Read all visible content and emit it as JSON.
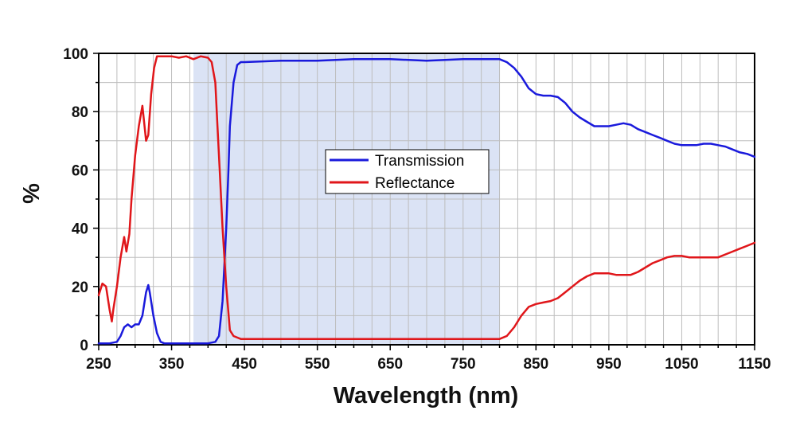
{
  "chart_data": {
    "type": "line",
    "xlabel": "Wavelength (nm)",
    "ylabel": "%",
    "xlim": [
      250,
      1150
    ],
    "ylim": [
      0,
      100
    ],
    "x_ticks": [
      "250",
      "350",
      "450",
      "550",
      "650",
      "750",
      "850",
      "950",
      "1050",
      "1150"
    ],
    "y_ticks": [
      "0",
      "20",
      "40",
      "60",
      "80",
      "100"
    ],
    "grid": true,
    "legend_position": "center",
    "shaded_band": {
      "x_start": 380,
      "x_end": 800,
      "color": "#dbe3f5"
    },
    "series": [
      {
        "name": "Transmission",
        "color": "#1a1adc",
        "x": [
          250,
          265,
          275,
          280,
          285,
          290,
          295,
          300,
          305,
          310,
          315,
          318,
          320,
          325,
          330,
          335,
          340,
          350,
          400,
          410,
          415,
          420,
          425,
          428,
          430,
          435,
          440,
          445,
          450,
          500,
          550,
          600,
          650,
          700,
          750,
          800,
          810,
          820,
          830,
          840,
          850,
          860,
          870,
          880,
          890,
          900,
          910,
          920,
          930,
          940,
          950,
          960,
          970,
          980,
          990,
          1000,
          1010,
          1020,
          1030,
          1040,
          1050,
          1060,
          1070,
          1080,
          1090,
          1100,
          1110,
          1120,
          1130,
          1140,
          1150
        ],
        "y": [
          0.5,
          0.5,
          1,
          3,
          6,
          7,
          6,
          7,
          7,
          10,
          18,
          20.5,
          18,
          10,
          4,
          1,
          0.5,
          0.5,
          0.5,
          1,
          3,
          15,
          40,
          60,
          75,
          90,
          96,
          97,
          97,
          97.5,
          97.5,
          98,
          98,
          97.5,
          98,
          98,
          97,
          95,
          92,
          88,
          86,
          85.5,
          85.5,
          85,
          83,
          80,
          78,
          76.5,
          75,
          75,
          75,
          75.5,
          76,
          75.5,
          74,
          73,
          72,
          71,
          70,
          69,
          68.5,
          68.5,
          68.5,
          69,
          69,
          68.5,
          68,
          67,
          66,
          65.5,
          64.5
        ]
      },
      {
        "name": "Reflectance",
        "color": "#e0161a",
        "x": [
          250,
          255,
          260,
          265,
          268,
          270,
          275,
          280,
          285,
          288,
          292,
          295,
          300,
          305,
          310,
          315,
          318,
          322,
          326,
          330,
          335,
          340,
          350,
          360,
          370,
          380,
          390,
          400,
          405,
          410,
          413,
          416,
          420,
          425,
          430,
          435,
          440,
          445,
          450,
          500,
          550,
          600,
          650,
          700,
          750,
          800,
          810,
          820,
          830,
          840,
          850,
          860,
          870,
          880,
          890,
          900,
          910,
          920,
          930,
          940,
          950,
          960,
          970,
          980,
          990,
          1000,
          1010,
          1020,
          1030,
          1040,
          1050,
          1060,
          1070,
          1080,
          1090,
          1100,
          1110,
          1120,
          1130,
          1140,
          1150
        ],
        "y": [
          17,
          21,
          20,
          12,
          8,
          12,
          20,
          30,
          37,
          32,
          38,
          50,
          65,
          75,
          82,
          70,
          72,
          86,
          95,
          99,
          99,
          99,
          99,
          98.5,
          99,
          98,
          99,
          98.5,
          97,
          90,
          75,
          60,
          40,
          20,
          5,
          3,
          2.5,
          2,
          2,
          2,
          2,
          2,
          2,
          2,
          2,
          2,
          3,
          6,
          10,
          13,
          14,
          14.5,
          15,
          16,
          18,
          20,
          22,
          23.5,
          24.5,
          24.5,
          24.5,
          24,
          24,
          24,
          25,
          26.5,
          28,
          29,
          30,
          30.5,
          30.5,
          30,
          30,
          30,
          30,
          30,
          31,
          32,
          33,
          34,
          35
        ]
      }
    ]
  }
}
